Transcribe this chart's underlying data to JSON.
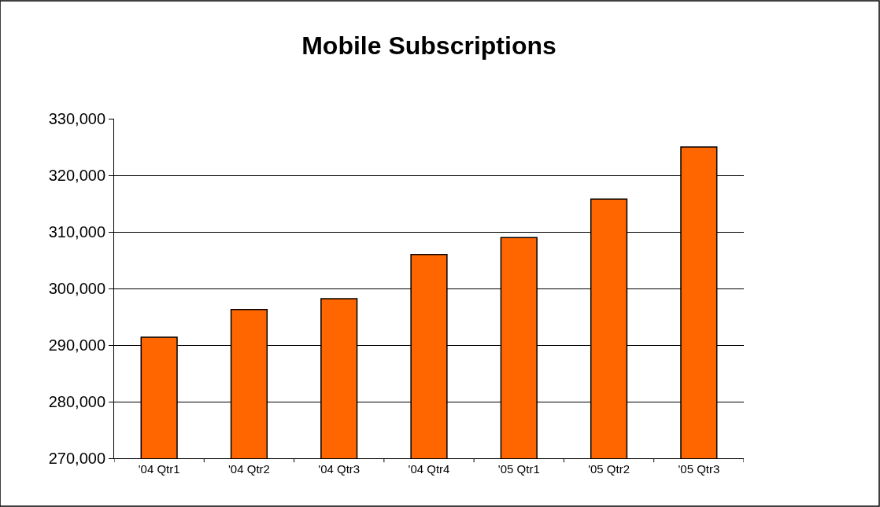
{
  "chart_data": {
    "type": "bar",
    "title": "Mobile Subscriptions",
    "categories": [
      "'04 Qtr1",
      "'04 Qtr2",
      "'04 Qtr3",
      "'04 Qtr4",
      "'05 Qtr1",
      "'05 Qtr2",
      "'05 Qtr3"
    ],
    "values": [
      291400,
      296300,
      298200,
      306000,
      309000,
      315800,
      325000
    ],
    "color": "#ff6600",
    "ylim": [
      270000,
      330000
    ],
    "yticks": [
      {
        "value": 270000,
        "label": "270,000"
      },
      {
        "value": 280000,
        "label": "280,000"
      },
      {
        "value": 290000,
        "label": "290,000"
      },
      {
        "value": 300000,
        "label": "300,000"
      },
      {
        "value": 310000,
        "label": "310,000"
      },
      {
        "value": 320000,
        "label": "320,000"
      },
      {
        "value": 330000,
        "label": "330,000"
      }
    ],
    "grid": "y"
  }
}
